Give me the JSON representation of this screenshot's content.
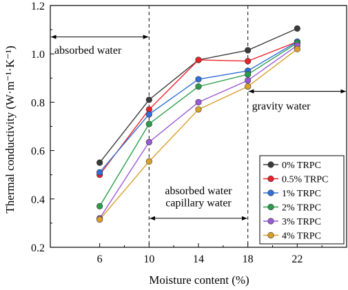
{
  "chart_data": {
    "type": "line",
    "x": [
      6,
      10,
      14,
      18,
      22
    ],
    "xlabel": "Moisture content (%)",
    "ylabel": "Thermal conductivity (W·m⁻¹·K⁻¹)",
    "xlim": [
      2,
      26
    ],
    "ylim": [
      0.2,
      1.2
    ],
    "xticks": [
      "6",
      "10",
      "14",
      "18",
      "22"
    ],
    "yticks": [
      "0.2",
      "0.4",
      "0.6",
      "0.8",
      "1.0",
      "1.2"
    ],
    "grid": false,
    "legend_position": "bottom-right",
    "series": [
      {
        "name": "0% TRPC",
        "color": "#3a3a3a",
        "values": [
          0.55,
          0.81,
          0.975,
          1.015,
          1.105
        ]
      },
      {
        "name": "0.5% TRPC",
        "color": "#e8232a",
        "values": [
          0.5,
          0.77,
          0.975,
          0.97,
          1.05
        ]
      },
      {
        "name": "1% TRPC",
        "color": "#2e6fd9",
        "values": [
          0.51,
          0.75,
          0.895,
          0.93,
          1.05
        ]
      },
      {
        "name": "2% TRPC",
        "color": "#2a9d4a",
        "values": [
          0.37,
          0.71,
          0.865,
          0.915,
          1.045
        ]
      },
      {
        "name": "3% TRPC",
        "color": "#9b59d6",
        "values": [
          0.32,
          0.635,
          0.8,
          0.89,
          1.035
        ]
      },
      {
        "name": "4% TRPC",
        "color": "#d9a02a",
        "values": [
          0.315,
          0.555,
          0.77,
          0.865,
          1.02
        ]
      }
    ],
    "vlines": [
      10,
      18
    ],
    "annotations": [
      {
        "text": "absorbed water",
        "x_from": 2,
        "x_to": 10,
        "y_arrow": 1.07,
        "y_text": 1.0,
        "boxed": false,
        "anchor": "start"
      },
      {
        "text": "gravity water",
        "x_from": 18,
        "x_to": 26,
        "y_arrow": 0.845,
        "y_text": 0.77,
        "boxed": false,
        "anchor": "start"
      },
      {
        "text": "absorbed water",
        "x_from": 10,
        "x_to": 18,
        "y_arrow": 0.32,
        "y_text": 0.42,
        "boxed": false,
        "anchor": "middle"
      },
      {
        "text": "capillary water",
        "x_from": 10,
        "x_to": 18,
        "y_arrow": 0.32,
        "y_text": 0.37,
        "boxed": false,
        "anchor": "middle"
      }
    ]
  }
}
